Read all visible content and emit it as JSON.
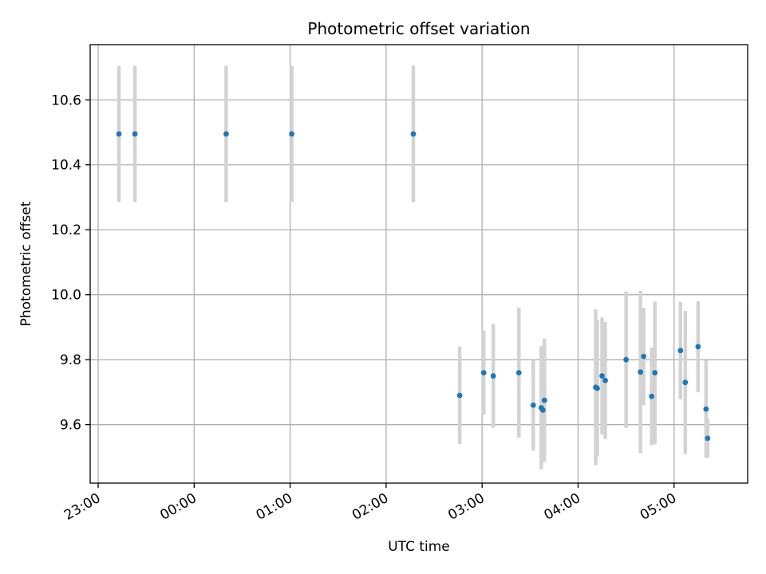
{
  "chart_data": {
    "type": "scatter",
    "title": "Photometric offset variation",
    "xlabel": "UTC time",
    "ylabel": "Photometric offset",
    "x_is_time": true,
    "x_origin": "23:00",
    "xlim": [
      "22:55",
      "05:46"
    ],
    "ylim": [
      9.42,
      10.77
    ],
    "x_ticks": [
      "23:00",
      "00:00",
      "01:00",
      "02:00",
      "03:00",
      "04:00",
      "05:00"
    ],
    "y_ticks": [
      9.6,
      9.8,
      10.0,
      10.2,
      10.4,
      10.6
    ],
    "y_tick_labels": [
      "9.6",
      "9.8",
      "10.0",
      "10.2",
      "10.4",
      "10.6"
    ],
    "grid": true,
    "legend": "none",
    "colors": {
      "point": "#1f77b4",
      "errorbar": "#d3d3d3",
      "grid": "#b0b0b0"
    },
    "points": [
      {
        "t": "23:13",
        "y": 10.495,
        "err": 0.21
      },
      {
        "t": "23:23",
        "y": 10.495,
        "err": 0.21
      },
      {
        "t": "00:20",
        "y": 10.495,
        "err": 0.21
      },
      {
        "t": "01:01",
        "y": 10.495,
        "err": 0.21
      },
      {
        "t": "02:17",
        "y": 10.495,
        "err": 0.21
      },
      {
        "t": "02:46",
        "y": 9.69,
        "err": 0.15
      },
      {
        "t": "03:01",
        "y": 9.76,
        "err": 0.13
      },
      {
        "t": "03:07",
        "y": 9.75,
        "err": 0.16
      },
      {
        "t": "03:23",
        "y": 9.76,
        "err": 0.2
      },
      {
        "t": "03:32",
        "y": 9.66,
        "err": 0.14
      },
      {
        "t": "03:37",
        "y": 9.652,
        "err": 0.19
      },
      {
        "t": "03:38",
        "y": 9.645,
        "err": 0.16
      },
      {
        "t": "03:39",
        "y": 9.675,
        "err": 0.19
      },
      {
        "t": "04:11",
        "y": 9.715,
        "err": 0.24
      },
      {
        "t": "04:12",
        "y": 9.712,
        "err": 0.21
      },
      {
        "t": "04:15",
        "y": 9.75,
        "err": 0.18
      },
      {
        "t": "04:17",
        "y": 9.736,
        "err": 0.18
      },
      {
        "t": "04:30",
        "y": 9.8,
        "err": 0.21
      },
      {
        "t": "04:39",
        "y": 9.762,
        "err": 0.25
      },
      {
        "t": "04:41",
        "y": 9.81,
        "err": 0.15
      },
      {
        "t": "04:46",
        "y": 9.687,
        "err": 0.15
      },
      {
        "t": "04:48",
        "y": 9.76,
        "err": 0.22
      },
      {
        "t": "05:04",
        "y": 9.828,
        "err": 0.15
      },
      {
        "t": "05:07",
        "y": 9.73,
        "err": 0.22
      },
      {
        "t": "05:15",
        "y": 9.84,
        "err": 0.14
      },
      {
        "t": "05:20",
        "y": 9.648,
        "err": 0.15
      },
      {
        "t": "05:21",
        "y": 9.558,
        "err": 0.06
      }
    ]
  }
}
